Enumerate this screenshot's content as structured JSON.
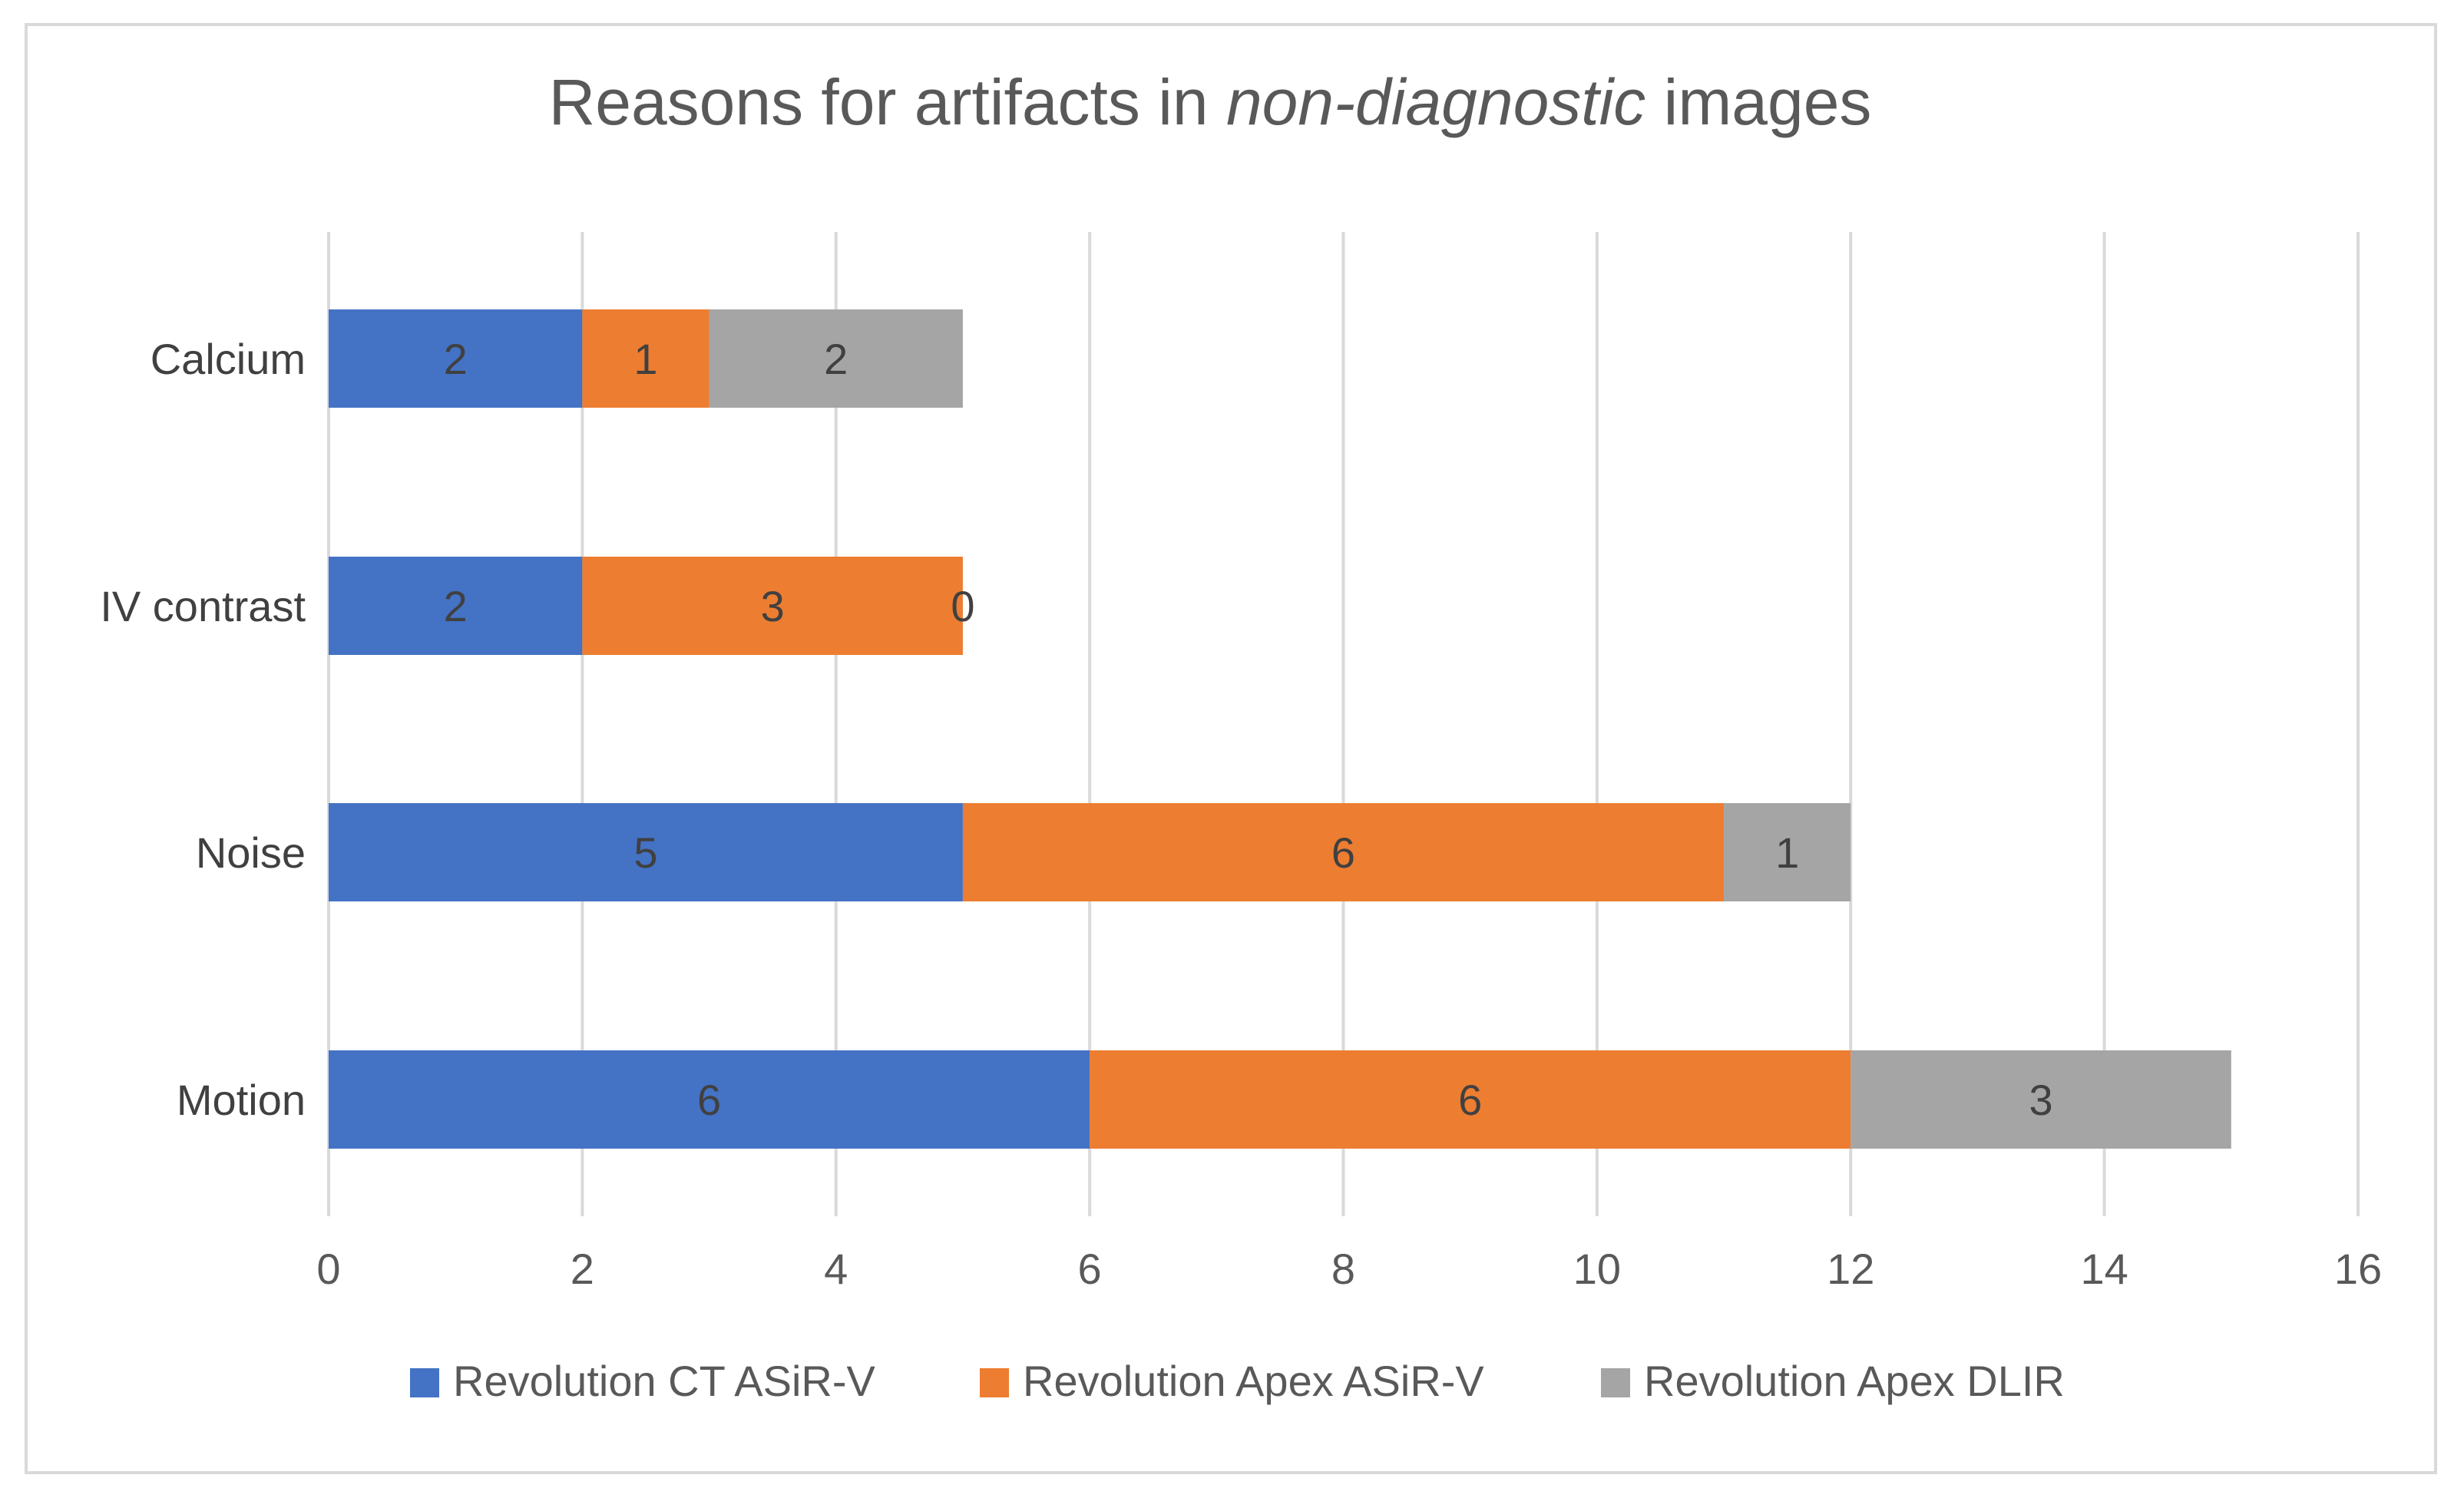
{
  "chart_data": {
    "type": "bar",
    "orientation": "horizontal",
    "stacked": true,
    "title_parts": [
      "Reasons for artifacts in ",
      "non-diagnostic",
      " images"
    ],
    "categories": [
      "Calcium",
      "IV contrast",
      "Noise",
      "Motion"
    ],
    "series": [
      {
        "name": "Revolution CT ASiR-V",
        "color": "#4472C4",
        "values": [
          2,
          2,
          5,
          6
        ]
      },
      {
        "name": "Revolution Apex ASiR-V",
        "color": "#ED7D31",
        "values": [
          1,
          3,
          6,
          6
        ]
      },
      {
        "name": "Revolution Apex DLIR",
        "color": "#A5A5A5",
        "values": [
          2,
          0,
          1,
          3
        ]
      }
    ],
    "xlim": [
      0,
      16
    ],
    "xticks": [
      0,
      2,
      4,
      6,
      8,
      10,
      12,
      14,
      16
    ],
    "grid": true,
    "legend_position": "bottom",
    "xlabel": "",
    "ylabel": ""
  }
}
